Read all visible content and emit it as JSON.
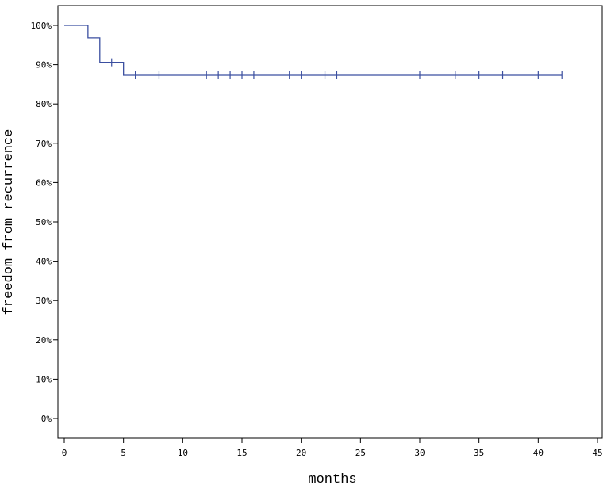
{
  "chart_data": {
    "type": "line",
    "subtype": "kaplan-meier-step",
    "title": "",
    "xlabel": "months",
    "ylabel": "freedom from recurrence",
    "xlim": [
      0,
      45
    ],
    "ylim": [
      0,
      100
    ],
    "x_ticks": [
      0,
      5,
      10,
      15,
      20,
      25,
      30,
      35,
      40,
      45
    ],
    "y_ticks": [
      0,
      10,
      20,
      30,
      40,
      50,
      60,
      70,
      80,
      90,
      100
    ],
    "y_tick_suffix": "%",
    "grid": false,
    "line_color": "#3b4fa0",
    "series": [
      {
        "steps": [
          {
            "x": 0,
            "y": 100
          },
          {
            "x": 2,
            "y": 96.8
          },
          {
            "x": 3,
            "y": 90.6
          },
          {
            "x": 5,
            "y": 87.3
          }
        ],
        "end_x": 42,
        "censored": [
          {
            "x": 4,
            "y": 90.6
          },
          {
            "x": 6,
            "y": 87.3
          },
          {
            "x": 8,
            "y": 87.3
          },
          {
            "x": 12,
            "y": 87.3
          },
          {
            "x": 13,
            "y": 87.3
          },
          {
            "x": 14,
            "y": 87.3
          },
          {
            "x": 15,
            "y": 87.3
          },
          {
            "x": 16,
            "y": 87.3
          },
          {
            "x": 19,
            "y": 87.3
          },
          {
            "x": 20,
            "y": 87.3
          },
          {
            "x": 22,
            "y": 87.3
          },
          {
            "x": 23,
            "y": 87.3
          },
          {
            "x": 30,
            "y": 87.3
          },
          {
            "x": 33,
            "y": 87.3
          },
          {
            "x": 35,
            "y": 87.3
          },
          {
            "x": 37,
            "y": 87.3
          },
          {
            "x": 40,
            "y": 87.3
          },
          {
            "x": 42,
            "y": 87.3
          }
        ]
      }
    ]
  }
}
